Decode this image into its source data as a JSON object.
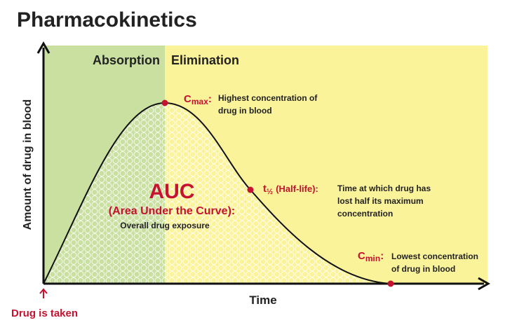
{
  "title": "Pharmacokinetics",
  "axes": {
    "y_label": "Amount of drug in blood",
    "x_label": "Time"
  },
  "phases": {
    "absorption": "Absorption",
    "elimination": "Elimination"
  },
  "cmax": {
    "symbol": "C",
    "subscript": "max",
    "separator": ":",
    "description": [
      "Highest concentration of",
      "drug in blood"
    ]
  },
  "half_life": {
    "symbol": "t",
    "subscript": "½",
    "label": "(Half-life):",
    "description": [
      "Time at which drug has",
      "lost half its maximum",
      "concentration"
    ]
  },
  "cmin": {
    "symbol": "C",
    "subscript": "min",
    "separator": ":",
    "description": [
      "Lowest concentration",
      "of drug in blood"
    ]
  },
  "auc": {
    "title": "AUC",
    "subtitle": "(Area Under the Curve):",
    "description": "Overall drug exposure"
  },
  "start_label": "Drug is taken"
}
